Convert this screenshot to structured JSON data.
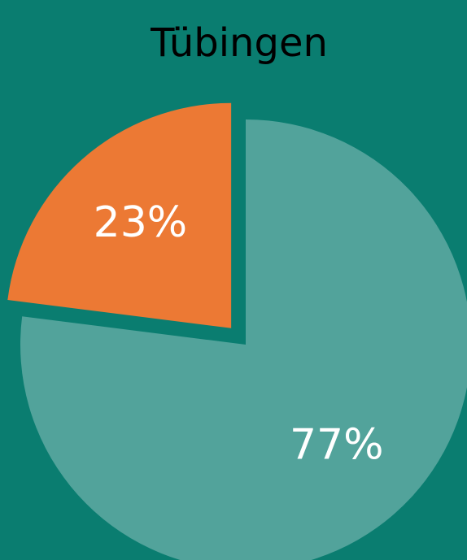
{
  "chart_data": {
    "type": "pie",
    "title": "Tübingen",
    "values": [
      77,
      23
    ],
    "value_labels": [
      "77%",
      "23%"
    ],
    "colors": [
      "#52a39b",
      "#ec7934"
    ],
    "exploded": [
      false,
      true
    ]
  }
}
